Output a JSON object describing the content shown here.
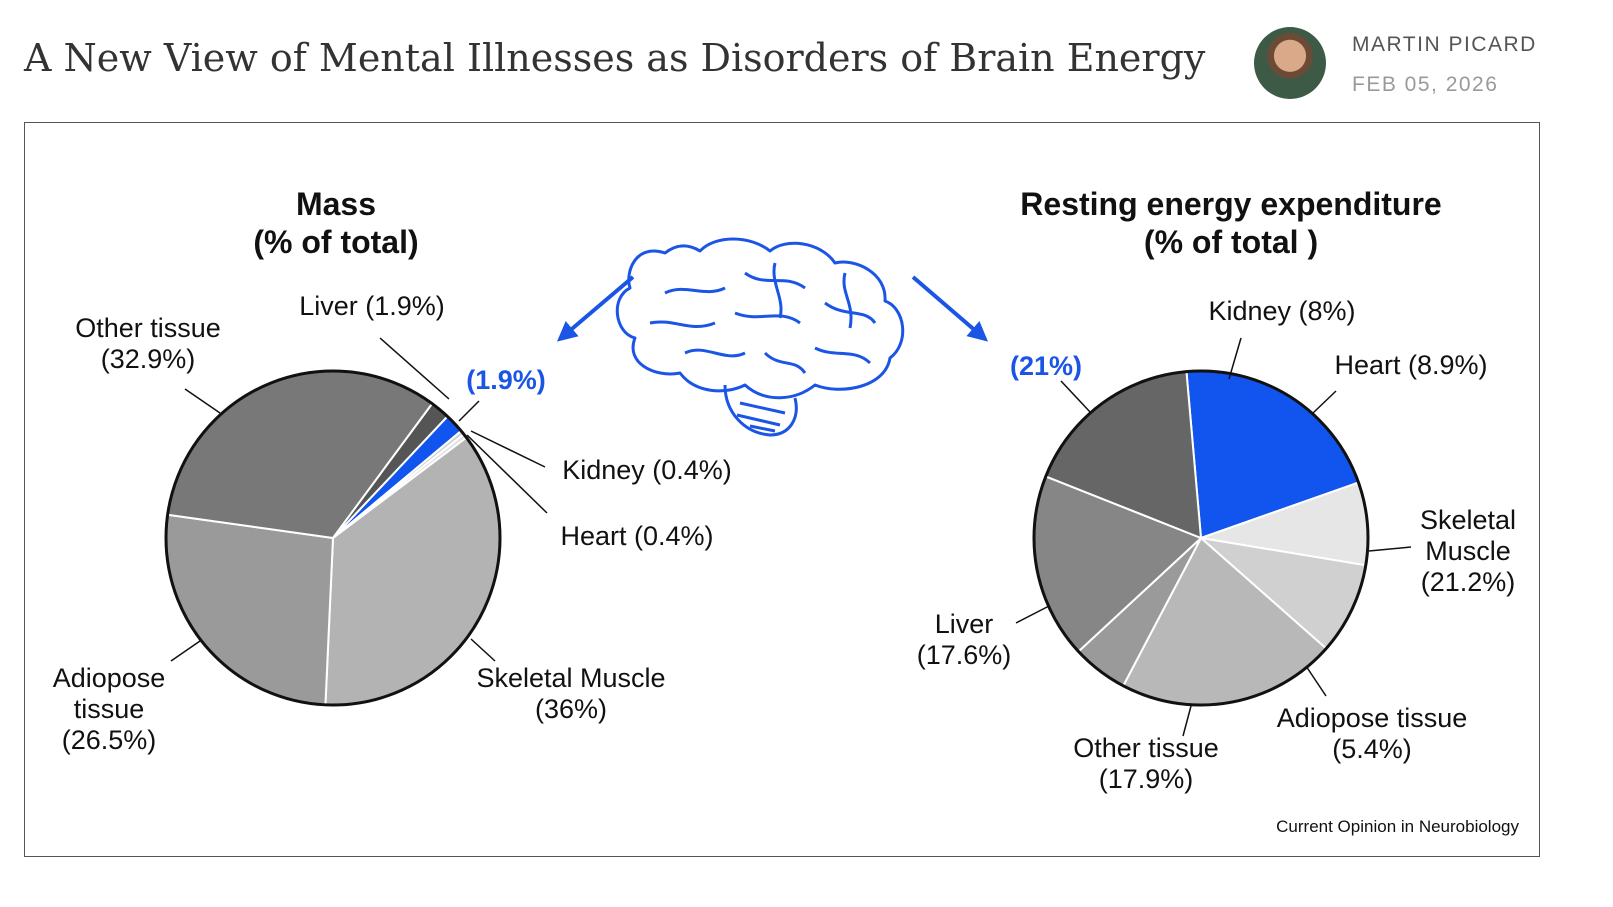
{
  "header": {
    "title": "A New View of Mental Illnesses as Disorders of Brain Energy",
    "author": "MARTIN PICARD",
    "date": "FEB 05, 2026"
  },
  "chart_data": [
    {
      "type": "pie",
      "title": "Mass",
      "subtitle": "(% of total)",
      "categories": [
        "Skeletal Muscle",
        "Adiopose tissue",
        "Other tissue",
        "Liver",
        null,
        "Kidney",
        "Heart"
      ],
      "values": [
        36,
        26.5,
        32.9,
        1.9,
        1.9,
        0.4,
        0.4
      ],
      "value_labels": [
        "(36%)",
        "(26.5%)",
        "(32.9%)",
        "(1.9%)",
        "(1.9%)",
        "(0.4%)",
        "(0.4%)"
      ],
      "colors": [
        "#b3b3b3",
        "#9a9a9a",
        "#787878",
        "#555555",
        "#1155ee",
        "#cfcfcf",
        "#e2e2e2"
      ]
    },
    {
      "type": "pie",
      "title": "Resting energy expenditure",
      "subtitle": "(% of total )",
      "categories": [
        null,
        "Kidney",
        "Heart",
        "Skeletal Muscle",
        "Adiopose tissue",
        "Other tissue",
        "Liver"
      ],
      "values": [
        21,
        8,
        8.9,
        21.2,
        5.4,
        17.9,
        17.6
      ],
      "value_labels": [
        "(21%)",
        "(8%)",
        "(8.9%)",
        "(21.2%)",
        "(5.4%)",
        "(17.9%)",
        "(17.6%)"
      ],
      "colors": [
        "#1155ee",
        "#e6e6e6",
        "#d0d0d0",
        "#b8b8b8",
        "#9a9a9a",
        "#868686",
        "#666666"
      ]
    }
  ],
  "credit": "Current Opinion in Neurobiology"
}
